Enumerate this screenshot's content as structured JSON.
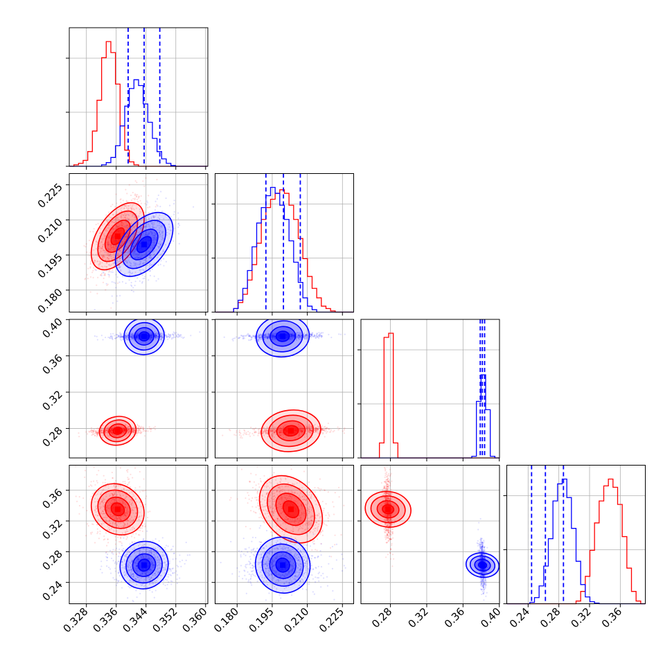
{
  "colors": {
    "red": "#ff0000",
    "blue": "#0000ff",
    "grid": "#b0b0b0",
    "frame": "#000000"
  },
  "chart_data": {
    "type": "corner",
    "parameters": 4,
    "grid": true,
    "ranges": [
      [
        0.3234,
        0.3606
      ],
      [
        0.1706,
        0.2298
      ],
      [
        0.2475,
        0.4002
      ],
      [
        0.2122,
        0.3926
      ]
    ],
    "ticks": [
      {
        "values": [
          0.328,
          0.336,
          0.344,
          0.352,
          0.36
        ],
        "labels": [
          "0.328",
          "0.336",
          "0.344",
          "0.352",
          "0.360"
        ]
      },
      {
        "values": [
          0.18,
          0.195,
          0.21,
          0.225
        ],
        "labels": [
          "0.180",
          "0.195",
          "0.210",
          "0.225"
        ]
      },
      {
        "values": [
          0.28,
          0.32,
          0.36,
          0.4
        ],
        "labels": [
          "0.28",
          "0.32",
          "0.36",
          "0.40"
        ]
      },
      {
        "values": [
          0.24,
          0.28,
          0.32,
          0.36
        ],
        "labels": [
          "0.24",
          "0.28",
          "0.32",
          "0.36"
        ]
      }
    ],
    "series": [
      {
        "color": "red",
        "summary": [
          {
            "mean": 0.3364,
            "sd": 0.0028
          },
          {
            "mean": 0.203,
            "sd": 0.007
          },
          {
            "mean": 0.2774,
            "sd": 0.002
          },
          {
            "mean": 0.3352,
            "sd": 0.017
          }
        ],
        "correlations": [
          [
            0,
            1,
            0.55
          ],
          [
            0,
            2,
            0.25
          ],
          [
            1,
            2,
            0.35
          ],
          [
            0,
            3,
            -0.15
          ],
          [
            1,
            3,
            -0.3
          ],
          [
            2,
            3,
            -0.25
          ]
        ],
        "histograms": [
          [
            0,
            2,
            4,
            8,
            20,
            48,
            90,
            148,
            170,
            155,
            112,
            55,
            22,
            6,
            2,
            0,
            0,
            0,
            0,
            0,
            0,
            0,
            0,
            0,
            0,
            0,
            0,
            0,
            0,
            0
          ],
          [
            0,
            0,
            0,
            0,
            3,
            8,
            15,
            27,
            40,
            58,
            78,
            88,
            95,
            100,
            103,
            100,
            90,
            78,
            62,
            45,
            30,
            20,
            12,
            5,
            3,
            1,
            0,
            0,
            0,
            0
          ],
          [
            0,
            0,
            0,
            0,
            18,
            145,
            150,
            18,
            0,
            0,
            0,
            0,
            0,
            0,
            0,
            0,
            0,
            0,
            0,
            0,
            0,
            0,
            0,
            0,
            0,
            0,
            0,
            0,
            0,
            0
          ],
          [
            0,
            0,
            0,
            0,
            0,
            0,
            0,
            0,
            0,
            0,
            0,
            0,
            0,
            0,
            0,
            4,
            18,
            40,
            78,
            118,
            150,
            172,
            182,
            170,
            145,
            98,
            52,
            18,
            4,
            0
          ]
        ],
        "quantiles": []
      },
      {
        "color": "blue",
        "summary": [
          {
            "mean": 0.3435,
            "sd": 0.0033
          },
          {
            "mean": 0.1995,
            "sd": 0.0065
          },
          {
            "mean": 0.3815,
            "sd": 0.0015
          },
          {
            "mean": 0.2625,
            "sd": 0.012
          }
        ],
        "correlations": [
          [
            0,
            1,
            0.5
          ],
          [
            0,
            2,
            0.1
          ],
          [
            1,
            2,
            0.25
          ],
          [
            0,
            3,
            0.05
          ],
          [
            1,
            3,
            -0.05
          ],
          [
            2,
            3,
            -0.3
          ]
        ],
        "histograms": [
          [
            0,
            0,
            0,
            0,
            0,
            0,
            0,
            2,
            5,
            12,
            28,
            55,
            82,
            106,
            118,
            110,
            85,
            60,
            38,
            20,
            10,
            4,
            1,
            0,
            0,
            0,
            0,
            0,
            0,
            0
          ],
          [
            0,
            0,
            0,
            0,
            3,
            10,
            20,
            35,
            55,
            75,
            88,
            98,
            105,
            100,
            90,
            78,
            60,
            42,
            25,
            12,
            5,
            2,
            0,
            0,
            0,
            0,
            0,
            0,
            0,
            0
          ],
          [
            0,
            0,
            0,
            0,
            0,
            0,
            0,
            0,
            0,
            0,
            0,
            0,
            0,
            0,
            0,
            0,
            0,
            0,
            0,
            0,
            0,
            0,
            0,
            0,
            2,
            68,
            100,
            58,
            2,
            0
          ],
          [
            0,
            0,
            0,
            0,
            0,
            2,
            9,
            26,
            55,
            95,
            150,
            175,
            182,
            155,
            110,
            62,
            28,
            10,
            3,
            1,
            0,
            0,
            0,
            0,
            0,
            0,
            0,
            0,
            0,
            0
          ]
        ],
        "quantiles": [
          [
            0.3392,
            0.3435,
            0.3477
          ],
          [
            0.1923,
            0.1998,
            0.207
          ],
          [
            0.379,
            0.3813,
            0.3838
          ],
          [
            0.2445,
            0.2625,
            0.286
          ]
        ]
      }
    ]
  }
}
